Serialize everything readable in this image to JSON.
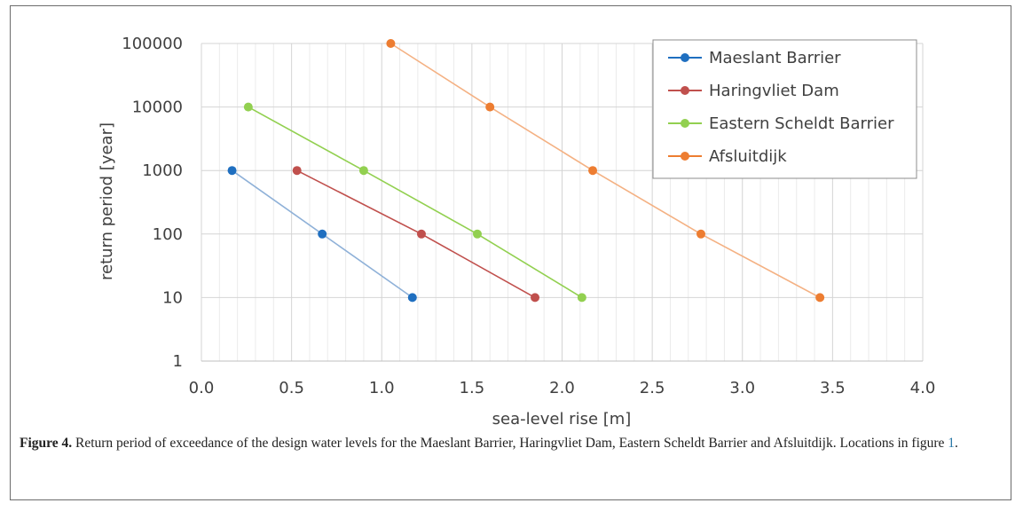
{
  "chart_data": {
    "type": "line",
    "title": "",
    "xlabel": "sea-level rise [m]",
    "ylabel": "return period [year]",
    "xlim": [
      0.0,
      4.0
    ],
    "ylim": [
      1,
      100000
    ],
    "yscale": "log",
    "grid": true,
    "legend_position": "top-right",
    "x_ticks": [
      "0.0",
      "0.5",
      "1.0",
      "1.5",
      "2.0",
      "2.5",
      "3.0",
      "3.5",
      "4.0"
    ],
    "y_ticks": [
      "100000",
      "10000",
      "1000",
      "100",
      "10",
      "1"
    ],
    "series": [
      {
        "name": "Maeslant Barrier",
        "color": "#1f6fc0",
        "line_color": "#8fb1d8",
        "x": [
          0.17,
          0.67,
          1.17
        ],
        "y": [
          1000,
          100,
          10
        ]
      },
      {
        "name": "Haringvliet Dam",
        "color": "#c0504d",
        "line_color": "#c0504d",
        "x": [
          0.53,
          1.22,
          1.85
        ],
        "y": [
          1000,
          100,
          10
        ]
      },
      {
        "name": "Eastern Scheldt Barrier",
        "color": "#92d050",
        "line_color": "#92d050",
        "x": [
          0.26,
          0.9,
          1.53,
          2.11
        ],
        "y": [
          10000,
          1000,
          100,
          10
        ]
      },
      {
        "name": "Afsluitdijk",
        "color": "#ed7d31",
        "line_color": "#f4b183",
        "x": [
          1.05,
          1.6,
          2.17,
          2.77,
          3.43
        ],
        "y": [
          100000,
          10000,
          1000,
          100,
          10
        ]
      }
    ]
  },
  "caption": {
    "lead": "Figure 4.",
    "text": " Return period of exceedance of the design water levels for the Maeslant Barrier, Haringvliet Dam, Eastern Scheldt Barrier and Afsluitdijk. Locations in figure ",
    "ref": "1",
    "end": "."
  }
}
